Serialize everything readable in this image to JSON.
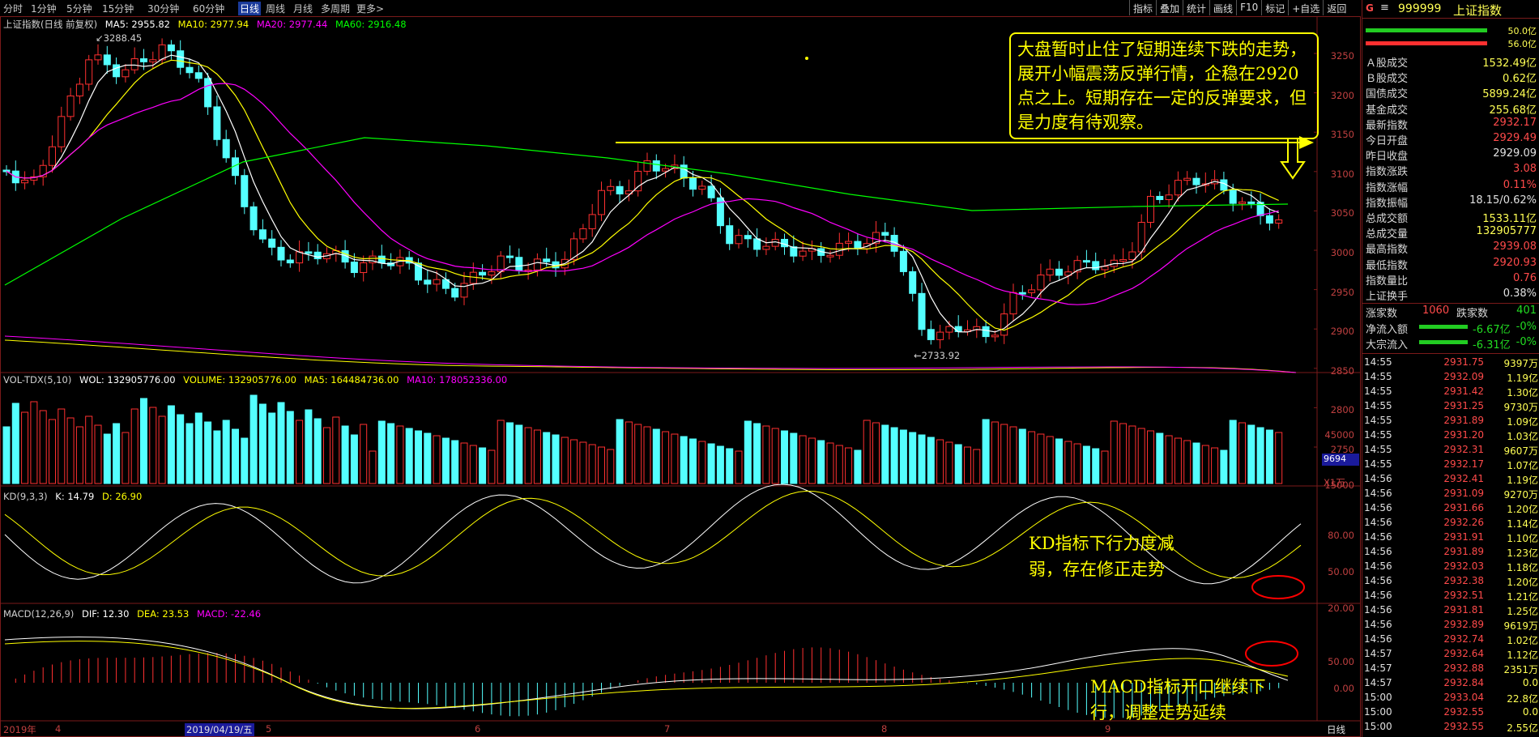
{
  "toolbar": {
    "periods": [
      "分时",
      "1分钟",
      "5分钟",
      "15分钟",
      "30分钟",
      "60分钟",
      "日线",
      "周线",
      "月线",
      "多周期",
      "更多>"
    ],
    "active": "日线",
    "right": [
      "指标",
      "叠加",
      "统计",
      "画线",
      "F10",
      "标记",
      "+自选",
      "返回"
    ]
  },
  "main": {
    "title": "上证指数(日线 前复权)",
    "ma": [
      {
        "label": "MA5: 2955.82",
        "color": "#ffffff"
      },
      {
        "label": "MA10: 2977.94",
        "color": "#ffff00"
      },
      {
        "label": "MA20: 2977.44",
        "color": "#ff00ff"
      },
      {
        "label": "MA60: 2916.48",
        "color": "#00ff00"
      }
    ],
    "yticks": [
      "3250",
      "3200",
      "3150",
      "3100",
      "3050",
      "3000",
      "2950",
      "2900",
      "2850",
      "2800",
      "2750"
    ],
    "high_label": "3288.45",
    "low_label": "2733.92",
    "callout": "大盘暂时止住了短期连续下跌的走势，展开小幅震荡反弹行情，企稳在2920点之上。短期存在一定的反弹要求，但是力度有待观察。"
  },
  "vol": {
    "title": "VOL-TDX(5,10)",
    "legend": [
      {
        "label": "WOL: 132905776.00",
        "color": "#ffffff"
      },
      {
        "label": "VOLUME: 132905776.00",
        "color": "#ffff00"
      },
      {
        "label": "MA5: 164484736.00",
        "color": "#ffff00"
      },
      {
        "label": "MA10: 178052336.00",
        "color": "#ff00ff"
      }
    ],
    "yticks": [
      "45000",
      "30000",
      "15000"
    ],
    "current": "9694",
    "unit": "X1万"
  },
  "kd": {
    "title": "KD(9,3,3)",
    "legend": [
      {
        "label": "K: 14.79",
        "color": "#ffffff"
      },
      {
        "label": "D: 26.90",
        "color": "#ffff00"
      }
    ],
    "yticks": [
      "80.00",
      "50.00",
      "20.00"
    ],
    "callout": "KD指标下行力度减弱，存在修正走势"
  },
  "macd": {
    "title": "MACD(12,26,9)",
    "legend": [
      {
        "label": "DIF: 12.30",
        "color": "#ffffff"
      },
      {
        "label": "DEA: 23.53",
        "color": "#ffff00"
      },
      {
        "label": "MACD: -22.46",
        "color": "#ff00ff"
      }
    ],
    "yticks": [
      "50.00",
      "0.00"
    ],
    "callout": "MACD指标开口继续下行，调整走势延续"
  },
  "xaxis": {
    "labels": [
      "2019年",
      "4",
      "2019/04/19/五",
      "5",
      "6",
      "7",
      "8",
      "9"
    ],
    "right": "日线"
  },
  "side": {
    "code": "999999",
    "name": "上证指数",
    "ratio_top": "50.0亿",
    "ratio_bottom": "56.0亿",
    "stats": [
      {
        "k": "Ａ股成交",
        "v": "1532.49亿",
        "c": "#ffff55"
      },
      {
        "k": "Ｂ股成交",
        "v": "0.62亿",
        "c": "#ffff55"
      },
      {
        "k": "国债成交",
        "v": "5899.24亿",
        "c": "#ffff55"
      },
      {
        "k": "基金成交",
        "v": "255.68亿",
        "c": "#ffff55"
      },
      {
        "k": "最新指数",
        "v": "2932.17",
        "c": "#ff4a4a"
      },
      {
        "k": "今日开盘",
        "v": "2929.49",
        "c": "#ff4a4a"
      },
      {
        "k": "昨日收盘",
        "v": "2929.09",
        "c": "#e0e0e0"
      },
      {
        "k": "指数涨跌",
        "v": "3.08",
        "c": "#ff4a4a"
      },
      {
        "k": "指数涨幅",
        "v": "0.11%",
        "c": "#ff4a4a"
      },
      {
        "k": "指数振幅",
        "v": "18.15/0.62%",
        "c": "#e0e0e0"
      },
      {
        "k": "总成交额",
        "v": "1533.11亿",
        "c": "#ffff55"
      },
      {
        "k": "总成交量",
        "v": "132905777",
        "c": "#ffff55"
      },
      {
        "k": "最高指数",
        "v": "2939.08",
        "c": "#ff4a4a"
      },
      {
        "k": "最低指数",
        "v": "2920.93",
        "c": "#ff4a4a"
      },
      {
        "k": "指数量比",
        "v": "0.76",
        "c": "#ff4a4a"
      },
      {
        "k": "上证换手",
        "v": "0.38%",
        "c": "#e0e0e0"
      }
    ],
    "up_label": "涨家数",
    "up": "1060",
    "down_label": "跌家数",
    "down": "401",
    "flows": [
      {
        "k": "净流入额",
        "v": "-6.67亿",
        "p": "-0%"
      },
      {
        "k": "大宗流入",
        "v": "-6.31亿",
        "p": "-0%"
      }
    ],
    "ticks": [
      [
        "14:55",
        "2931.75",
        "9397万"
      ],
      [
        "14:55",
        "2932.09",
        "1.19亿"
      ],
      [
        "14:55",
        "2931.42",
        "1.30亿"
      ],
      [
        "14:55",
        "2931.25",
        "9730万"
      ],
      [
        "14:55",
        "2931.89",
        "1.09亿"
      ],
      [
        "14:55",
        "2931.20",
        "1.03亿"
      ],
      [
        "14:55",
        "2932.31",
        "9607万"
      ],
      [
        "14:55",
        "2932.17",
        "1.07亿"
      ],
      [
        "14:56",
        "2932.41",
        "1.19亿"
      ],
      [
        "14:56",
        "2931.09",
        "9270万"
      ],
      [
        "14:56",
        "2931.66",
        "1.20亿"
      ],
      [
        "14:56",
        "2932.26",
        "1.14亿"
      ],
      [
        "14:56",
        "2931.91",
        "1.10亿"
      ],
      [
        "14:56",
        "2931.89",
        "1.23亿"
      ],
      [
        "14:56",
        "2932.03",
        "1.18亿"
      ],
      [
        "14:56",
        "2932.38",
        "1.20亿"
      ],
      [
        "14:56",
        "2932.51",
        "1.21亿"
      ],
      [
        "14:56",
        "2931.81",
        "1.25亿"
      ],
      [
        "14:56",
        "2932.89",
        "9619万"
      ],
      [
        "14:56",
        "2932.74",
        "1.02亿"
      ],
      [
        "14:57",
        "2932.64",
        "1.12亿"
      ],
      [
        "14:57",
        "2932.88",
        "2351万"
      ],
      [
        "14:57",
        "2932.84",
        "0.0"
      ],
      [
        "15:00",
        "2933.04",
        "22.8亿"
      ],
      [
        "15:00",
        "2932.55",
        "0.0"
      ],
      [
        "15:00",
        "2932.55",
        "2.55亿"
      ]
    ]
  }
}
